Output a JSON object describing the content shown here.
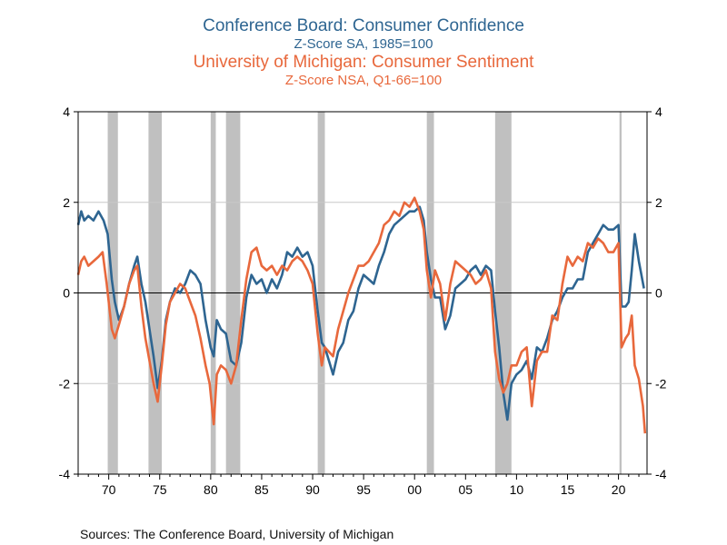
{
  "titles": {
    "line1": "Conference Board: Consumer Confidence",
    "line2": "Z-Score  SA, 1985=100",
    "line3": "University of Michigan: Consumer Sentiment",
    "line4": "Z-Score  NSA, Q1-66=100"
  },
  "footer": {
    "sources": "Sources:  The Conference Board, University of Michigan"
  },
  "colors": {
    "series_conference": "#2e6591",
    "series_michigan": "#e8683c",
    "recession": "#c0c0c0",
    "grid": "#c8c8c8"
  },
  "chart_data": {
    "type": "line",
    "xlim": [
      1967,
      2022.8
    ],
    "ylim": [
      -4,
      4
    ],
    "y_ticks": [
      4,
      2,
      0,
      -2,
      -4
    ],
    "x_ticks": [
      {
        "year": 1970,
        "label": "70"
      },
      {
        "year": 1975,
        "label": "75"
      },
      {
        "year": 1980,
        "label": "80"
      },
      {
        "year": 1985,
        "label": "85"
      },
      {
        "year": 1990,
        "label": "90"
      },
      {
        "year": 1995,
        "label": "95"
      },
      {
        "year": 2000,
        "label": "00"
      },
      {
        "year": 2005,
        "label": "05"
      },
      {
        "year": 2010,
        "label": "10"
      },
      {
        "year": 2015,
        "label": "15"
      },
      {
        "year": 2020,
        "label": "20"
      }
    ],
    "grid": true,
    "recessions": [
      [
        1969.9,
        1970.9
      ],
      [
        1973.9,
        1975.2
      ],
      [
        1980.0,
        1980.5
      ],
      [
        1981.5,
        1982.9
      ],
      [
        1990.5,
        1991.2
      ],
      [
        2001.2,
        2001.9
      ],
      [
        2007.9,
        2009.5
      ],
      [
        2020.1,
        2020.3
      ]
    ],
    "series": [
      {
        "name": "Conference Board: Consumer Confidence",
        "color": "#2e6591",
        "points": [
          [
            1967.0,
            1.5
          ],
          [
            1967.3,
            1.8
          ],
          [
            1967.6,
            1.6
          ],
          [
            1968.0,
            1.7
          ],
          [
            1968.5,
            1.6
          ],
          [
            1969.0,
            1.8
          ],
          [
            1969.5,
            1.6
          ],
          [
            1969.9,
            1.3
          ],
          [
            1970.3,
            0.3
          ],
          [
            1970.6,
            -0.2
          ],
          [
            1971.0,
            -0.6
          ],
          [
            1971.5,
            -0.3
          ],
          [
            1972.0,
            0.2
          ],
          [
            1972.5,
            0.6
          ],
          [
            1972.8,
            0.8
          ],
          [
            1973.2,
            0.2
          ],
          [
            1973.6,
            -0.2
          ],
          [
            1974.0,
            -0.8
          ],
          [
            1974.4,
            -1.4
          ],
          [
            1974.8,
            -2.1
          ],
          [
            1975.2,
            -1.5
          ],
          [
            1975.6,
            -0.6
          ],
          [
            1976.0,
            -0.2
          ],
          [
            1976.5,
            0.1
          ],
          [
            1977.0,
            0.0
          ],
          [
            1977.5,
            0.2
          ],
          [
            1978.0,
            0.5
          ],
          [
            1978.5,
            0.4
          ],
          [
            1979.0,
            0.2
          ],
          [
            1979.5,
            -0.6
          ],
          [
            1980.0,
            -1.2
          ],
          [
            1980.3,
            -1.4
          ],
          [
            1980.6,
            -0.6
          ],
          [
            1981.0,
            -0.8
          ],
          [
            1981.5,
            -0.9
          ],
          [
            1982.0,
            -1.5
          ],
          [
            1982.5,
            -1.6
          ],
          [
            1983.0,
            -1.1
          ],
          [
            1983.5,
            -0.1
          ],
          [
            1984.0,
            0.4
          ],
          [
            1984.5,
            0.2
          ],
          [
            1985.0,
            0.3
          ],
          [
            1985.5,
            0.0
          ],
          [
            1986.0,
            0.3
          ],
          [
            1986.5,
            0.1
          ],
          [
            1987.0,
            0.4
          ],
          [
            1987.5,
            0.9
          ],
          [
            1988.0,
            0.8
          ],
          [
            1988.5,
            1.0
          ],
          [
            1989.0,
            0.8
          ],
          [
            1989.5,
            0.9
          ],
          [
            1990.0,
            0.6
          ],
          [
            1990.5,
            -0.4
          ],
          [
            1990.9,
            -1.1
          ],
          [
            1991.2,
            -1.2
          ],
          [
            1991.6,
            -1.5
          ],
          [
            1992.0,
            -1.8
          ],
          [
            1992.5,
            -1.3
          ],
          [
            1993.0,
            -1.1
          ],
          [
            1993.5,
            -0.6
          ],
          [
            1994.0,
            -0.4
          ],
          [
            1994.5,
            0.1
          ],
          [
            1995.0,
            0.4
          ],
          [
            1995.5,
            0.3
          ],
          [
            1996.0,
            0.2
          ],
          [
            1996.5,
            0.6
          ],
          [
            1997.0,
            0.9
          ],
          [
            1997.5,
            1.3
          ],
          [
            1998.0,
            1.5
          ],
          [
            1998.5,
            1.6
          ],
          [
            1999.0,
            1.7
          ],
          [
            1999.5,
            1.8
          ],
          [
            2000.0,
            1.8
          ],
          [
            2000.5,
            1.9
          ],
          [
            2000.9,
            1.6
          ],
          [
            2001.2,
            0.9
          ],
          [
            2001.6,
            0.3
          ],
          [
            2002.0,
            -0.1
          ],
          [
            2002.5,
            -0.1
          ],
          [
            2003.0,
            -0.8
          ],
          [
            2003.5,
            -0.5
          ],
          [
            2004.0,
            0.1
          ],
          [
            2004.5,
            0.2
          ],
          [
            2005.0,
            0.3
          ],
          [
            2005.5,
            0.5
          ],
          [
            2006.0,
            0.6
          ],
          [
            2006.5,
            0.4
          ],
          [
            2007.0,
            0.6
          ],
          [
            2007.5,
            0.5
          ],
          [
            2007.9,
            -0.4
          ],
          [
            2008.3,
            -1.2
          ],
          [
            2008.7,
            -2.2
          ],
          [
            2009.1,
            -2.8
          ],
          [
            2009.5,
            -2.0
          ],
          [
            2010.0,
            -1.8
          ],
          [
            2010.5,
            -1.7
          ],
          [
            2011.0,
            -1.5
          ],
          [
            2011.5,
            -1.9
          ],
          [
            2012.0,
            -1.2
          ],
          [
            2012.5,
            -1.3
          ],
          [
            2013.0,
            -1.0
          ],
          [
            2013.5,
            -0.6
          ],
          [
            2014.0,
            -0.4
          ],
          [
            2014.5,
            -0.1
          ],
          [
            2015.0,
            0.1
          ],
          [
            2015.5,
            0.1
          ],
          [
            2016.0,
            0.3
          ],
          [
            2016.5,
            0.3
          ],
          [
            2017.0,
            0.9
          ],
          [
            2017.5,
            1.1
          ],
          [
            2018.0,
            1.3
          ],
          [
            2018.5,
            1.5
          ],
          [
            2019.0,
            1.4
          ],
          [
            2019.5,
            1.4
          ],
          [
            2020.0,
            1.5
          ],
          [
            2020.3,
            -0.3
          ],
          [
            2020.7,
            -0.3
          ],
          [
            2021.0,
            -0.2
          ],
          [
            2021.3,
            0.5
          ],
          [
            2021.6,
            1.3
          ],
          [
            2022.0,
            0.7
          ],
          [
            2022.5,
            0.1
          ]
        ]
      },
      {
        "name": "University of Michigan: Consumer Sentiment",
        "color": "#e8683c",
        "points": [
          [
            1967.0,
            0.4
          ],
          [
            1967.3,
            0.7
          ],
          [
            1967.6,
            0.8
          ],
          [
            1968.0,
            0.6
          ],
          [
            1968.5,
            0.7
          ],
          [
            1969.0,
            0.8
          ],
          [
            1969.4,
            0.9
          ],
          [
            1969.8,
            0.2
          ],
          [
            1970.3,
            -0.8
          ],
          [
            1970.6,
            -1.0
          ],
          [
            1971.0,
            -0.7
          ],
          [
            1971.5,
            -0.3
          ],
          [
            1972.0,
            0.2
          ],
          [
            1972.5,
            0.5
          ],
          [
            1972.8,
            0.6
          ],
          [
            1973.2,
            -0.3
          ],
          [
            1973.6,
            -1.0
          ],
          [
            1974.0,
            -1.5
          ],
          [
            1974.4,
            -2.0
          ],
          [
            1974.8,
            -2.4
          ],
          [
            1975.2,
            -1.6
          ],
          [
            1975.6,
            -0.7
          ],
          [
            1976.0,
            -0.2
          ],
          [
            1976.5,
            0.0
          ],
          [
            1977.0,
            0.2
          ],
          [
            1977.5,
            0.1
          ],
          [
            1978.0,
            -0.2
          ],
          [
            1978.5,
            -0.5
          ],
          [
            1979.0,
            -1.0
          ],
          [
            1979.5,
            -1.6
          ],
          [
            1979.9,
            -2.0
          ],
          [
            1980.3,
            -2.9
          ],
          [
            1980.6,
            -1.8
          ],
          [
            1981.0,
            -1.6
          ],
          [
            1981.5,
            -1.7
          ],
          [
            1982.0,
            -2.0
          ],
          [
            1982.5,
            -1.6
          ],
          [
            1983.0,
            -0.6
          ],
          [
            1983.5,
            0.3
          ],
          [
            1984.0,
            0.9
          ],
          [
            1984.5,
            1.0
          ],
          [
            1985.0,
            0.6
          ],
          [
            1985.5,
            0.5
          ],
          [
            1986.0,
            0.6
          ],
          [
            1986.5,
            0.4
          ],
          [
            1987.0,
            0.6
          ],
          [
            1987.5,
            0.5
          ],
          [
            1988.0,
            0.7
          ],
          [
            1988.5,
            0.8
          ],
          [
            1989.0,
            0.7
          ],
          [
            1989.5,
            0.5
          ],
          [
            1990.0,
            0.2
          ],
          [
            1990.5,
            -0.9
          ],
          [
            1990.9,
            -1.6
          ],
          [
            1991.2,
            -1.2
          ],
          [
            1991.6,
            -1.3
          ],
          [
            1992.0,
            -1.4
          ],
          [
            1992.5,
            -0.8
          ],
          [
            1993.0,
            -0.4
          ],
          [
            1993.5,
            0.0
          ],
          [
            1994.0,
            0.3
          ],
          [
            1994.5,
            0.6
          ],
          [
            1995.0,
            0.6
          ],
          [
            1995.5,
            0.7
          ],
          [
            1996.0,
            0.9
          ],
          [
            1996.5,
            1.1
          ],
          [
            1997.0,
            1.5
          ],
          [
            1997.5,
            1.6
          ],
          [
            1998.0,
            1.8
          ],
          [
            1998.5,
            1.7
          ],
          [
            1999.0,
            2.0
          ],
          [
            1999.5,
            1.9
          ],
          [
            2000.0,
            2.1
          ],
          [
            2000.5,
            1.8
          ],
          [
            2000.9,
            1.4
          ],
          [
            2001.2,
            0.5
          ],
          [
            2001.6,
            -0.1
          ],
          [
            2002.0,
            0.5
          ],
          [
            2002.5,
            0.2
          ],
          [
            2003.0,
            -0.6
          ],
          [
            2003.5,
            0.2
          ],
          [
            2004.0,
            0.7
          ],
          [
            2004.5,
            0.6
          ],
          [
            2005.0,
            0.5
          ],
          [
            2005.5,
            0.4
          ],
          [
            2006.0,
            0.2
          ],
          [
            2006.5,
            0.3
          ],
          [
            2007.0,
            0.5
          ],
          [
            2007.5,
            0.1
          ],
          [
            2007.9,
            -1.3
          ],
          [
            2008.3,
            -1.9
          ],
          [
            2008.7,
            -2.2
          ],
          [
            2009.1,
            -2.0
          ],
          [
            2009.5,
            -1.6
          ],
          [
            2010.0,
            -1.6
          ],
          [
            2010.5,
            -1.3
          ],
          [
            2011.0,
            -1.2
          ],
          [
            2011.5,
            -2.5
          ],
          [
            2012.0,
            -1.5
          ],
          [
            2012.5,
            -1.3
          ],
          [
            2013.0,
            -1.3
          ],
          [
            2013.5,
            -0.5
          ],
          [
            2014.0,
            -0.6
          ],
          [
            2014.5,
            0.2
          ],
          [
            2015.0,
            0.8
          ],
          [
            2015.5,
            0.6
          ],
          [
            2016.0,
            0.8
          ],
          [
            2016.5,
            0.7
          ],
          [
            2017.0,
            1.1
          ],
          [
            2017.5,
            1.0
          ],
          [
            2018.0,
            1.2
          ],
          [
            2018.5,
            1.1
          ],
          [
            2019.0,
            0.9
          ],
          [
            2019.5,
            0.9
          ],
          [
            2020.0,
            1.1
          ],
          [
            2020.3,
            -1.2
          ],
          [
            2020.7,
            -1.0
          ],
          [
            2021.0,
            -0.9
          ],
          [
            2021.3,
            -0.5
          ],
          [
            2021.6,
            -1.6
          ],
          [
            2022.0,
            -1.9
          ],
          [
            2022.4,
            -2.5
          ],
          [
            2022.6,
            -3.1
          ]
        ]
      }
    ]
  }
}
